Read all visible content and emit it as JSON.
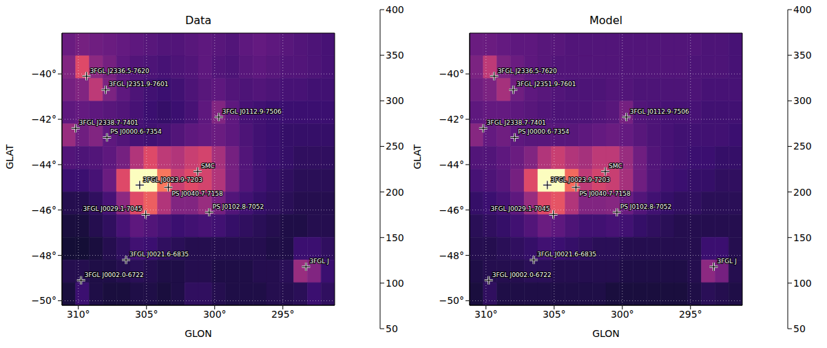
{
  "chart_data": [
    {
      "type": "heatmap",
      "title": "Data",
      "x_label": "GLON",
      "y_label": "GLAT",
      "xlim": [
        311.2,
        291.2
      ],
      "ylim": [
        -50.2,
        -38.2
      ],
      "xticks": [
        {
          "value": 310,
          "label": "310°"
        },
        {
          "value": 305,
          "label": "305°"
        },
        {
          "value": 300,
          "label": "300°"
        },
        {
          "value": 295,
          "label": "295°"
        }
      ],
      "yticks": [
        {
          "value": -40,
          "label": "−40°"
        },
        {
          "value": -42,
          "label": "−42°"
        },
        {
          "value": -44,
          "label": "−44°"
        },
        {
          "value": -46,
          "label": "−46°"
        },
        {
          "value": -48,
          "label": "−48°"
        },
        {
          "value": -50,
          "label": "−50°"
        }
      ],
      "grid": true,
      "color": "magma",
      "marker": "plus",
      "x": [
        310.7,
        309.7,
        308.7,
        307.7,
        306.7,
        305.7,
        304.7,
        303.7,
        302.7,
        301.7,
        300.7,
        299.7,
        298.7,
        297.7,
        296.7,
        295.7,
        294.7,
        293.7,
        292.7,
        291.7
      ],
      "y": [
        -38.7,
        -39.7,
        -40.7,
        -41.7,
        -42.7,
        -43.7,
        -44.7,
        -45.7,
        -46.7,
        -47.7,
        -48.7,
        -49.7
      ],
      "z": [
        [
          160,
          170,
          165,
          160,
          155,
          150,
          145,
          140,
          140,
          145,
          150,
          145,
          140,
          150,
          155,
          150,
          145,
          140,
          135,
          130
        ],
        [
          180,
          260,
          190,
          170,
          150,
          140,
          135,
          130,
          135,
          140,
          150,
          140,
          135,
          145,
          150,
          145,
          140,
          140,
          135,
          130
        ],
        [
          170,
          180,
          230,
          175,
          150,
          135,
          125,
          120,
          125,
          135,
          145,
          150,
          140,
          135,
          140,
          135,
          130,
          130,
          125,
          125
        ],
        [
          150,
          155,
          150,
          145,
          140,
          130,
          120,
          115,
          120,
          130,
          150,
          180,
          150,
          130,
          125,
          120,
          120,
          120,
          120,
          120
        ],
        [
          200,
          165,
          180,
          150,
          140,
          130,
          125,
          130,
          140,
          150,
          155,
          160,
          150,
          135,
          125,
          120,
          115,
          115,
          115,
          115
        ],
        [
          140,
          135,
          140,
          150,
          170,
          220,
          260,
          230,
          220,
          240,
          250,
          210,
          170,
          140,
          125,
          120,
          115,
          110,
          110,
          110
        ],
        [
          120,
          120,
          130,
          160,
          260,
          400,
          400,
          300,
          240,
          260,
          250,
          220,
          170,
          140,
          125,
          115,
          110,
          105,
          105,
          105
        ],
        [
          100,
          100,
          110,
          130,
          190,
          260,
          280,
          220,
          180,
          180,
          200,
          170,
          140,
          125,
          115,
          110,
          105,
          100,
          100,
          100
        ],
        [
          90,
          90,
          100,
          110,
          130,
          150,
          140,
          130,
          120,
          125,
          130,
          125,
          115,
          110,
          105,
          100,
          95,
          95,
          100,
          100
        ],
        [
          85,
          85,
          90,
          100,
          110,
          125,
          120,
          110,
          105,
          100,
          100,
          100,
          100,
          100,
          100,
          95,
          95,
          120,
          120,
          110
        ],
        [
          100,
          100,
          95,
          95,
          100,
          105,
          100,
          95,
          95,
          100,
          100,
          95,
          95,
          95,
          100,
          100,
          105,
          200,
          180,
          120
        ],
        [
          90,
          120,
          95,
          90,
          90,
          95,
          95,
          90,
          95,
          110,
          110,
          100,
          95,
          95,
          95,
          100,
          100,
          105,
          120,
          110
        ]
      ],
      "colorbar_range": [
        50,
        400
      ],
      "colorbar_ticks": [
        50,
        100,
        150,
        200,
        250,
        300,
        350,
        400
      ],
      "sources": [
        {
          "label": "3FGL J2336.5-7620",
          "x": 309.4,
          "y": -40.1
        },
        {
          "label": "3FGL J2351.9-7601",
          "x": 308.0,
          "y": -40.7
        },
        {
          "label": "3FGL J2338.7-7401",
          "x": 310.2,
          "y": -42.4
        },
        {
          "label": "PS J0000.6-7354",
          "x": 307.9,
          "y": -42.8
        },
        {
          "label": "3FGL J0112.9-7506",
          "x": 299.7,
          "y": -41.9
        },
        {
          "label": "SMC",
          "x": 301.25,
          "y": -44.3
        },
        {
          "label": "3FGL J0023.9-7203",
          "x": 305.5,
          "y": -44.9
        },
        {
          "label": "PS J0040.7-7158",
          "x": 303.4,
          "y": -45.0
        },
        {
          "label": "3FGL J0029.1-7045",
          "x": 305.06,
          "y": -46.2
        },
        {
          "label": "PS J0102.8-7052",
          "x": 300.4,
          "y": -46.1
        },
        {
          "label": "3FGL J0021.6-6835",
          "x": 306.5,
          "y": -48.2
        },
        {
          "label": "3FGL J0002.0-6722",
          "x": 309.8,
          "y": -49.1
        },
        {
          "label": "3FGL J",
          "x": 293.3,
          "y": -48.5
        }
      ]
    },
    {
      "type": "heatmap",
      "title": "Model",
      "x_label": "GLON",
      "y_label": "GLAT",
      "xlim": [
        311.2,
        291.2
      ],
      "ylim": [
        -50.2,
        -38.2
      ],
      "xticks": [
        {
          "value": 310,
          "label": "310°"
        },
        {
          "value": 305,
          "label": "305°"
        },
        {
          "value": 300,
          "label": "300°"
        },
        {
          "value": 295,
          "label": "295°"
        }
      ],
      "yticks": [
        {
          "value": -40,
          "label": "−40°"
        },
        {
          "value": -42,
          "label": "−42°"
        },
        {
          "value": -44,
          "label": "−44°"
        },
        {
          "value": -46,
          "label": "−46°"
        },
        {
          "value": -48,
          "label": "−48°"
        },
        {
          "value": -50,
          "label": "−50°"
        }
      ],
      "grid": true,
      "color": "magma",
      "marker": "plus",
      "x": [
        310.7,
        309.7,
        308.7,
        307.7,
        306.7,
        305.7,
        304.7,
        303.7,
        302.7,
        301.7,
        300.7,
        299.7,
        298.7,
        297.7,
        296.7,
        295.7,
        294.7,
        293.7,
        292.7,
        291.7
      ],
      "y": [
        -38.7,
        -39.7,
        -40.7,
        -41.7,
        -42.7,
        -43.7,
        -44.7,
        -45.7,
        -46.7,
        -47.7,
        -48.7,
        -49.7
      ],
      "z": [
        [
          160,
          160,
          155,
          150,
          150,
          145,
          145,
          140,
          140,
          140,
          140,
          140,
          140,
          140,
          140,
          140,
          140,
          135,
          135,
          130
        ],
        [
          175,
          230,
          175,
          160,
          150,
          145,
          140,
          140,
          140,
          140,
          140,
          140,
          140,
          140,
          140,
          140,
          135,
          135,
          135,
          130
        ],
        [
          165,
          175,
          210,
          165,
          150,
          145,
          140,
          135,
          135,
          135,
          140,
          140,
          135,
          135,
          135,
          135,
          135,
          130,
          130,
          130
        ],
        [
          150,
          155,
          155,
          150,
          145,
          140,
          135,
          135,
          135,
          140,
          145,
          170,
          140,
          135,
          130,
          130,
          130,
          125,
          125,
          125
        ],
        [
          185,
          155,
          165,
          150,
          145,
          145,
          145,
          145,
          150,
          155,
          160,
          155,
          145,
          135,
          130,
          125,
          125,
          125,
          125,
          120
        ],
        [
          140,
          140,
          150,
          160,
          180,
          220,
          240,
          220,
          210,
          230,
          230,
          200,
          165,
          140,
          130,
          125,
          120,
          120,
          115,
          115
        ],
        [
          130,
          135,
          145,
          170,
          260,
          400,
          400,
          290,
          230,
          250,
          240,
          210,
          165,
          140,
          125,
          120,
          115,
          115,
          110,
          110
        ],
        [
          115,
          120,
          130,
          150,
          200,
          260,
          270,
          220,
          180,
          180,
          185,
          160,
          140,
          125,
          115,
          110,
          110,
          105,
          105,
          105
        ],
        [
          105,
          110,
          115,
          125,
          140,
          160,
          150,
          135,
          125,
          125,
          130,
          125,
          115,
          110,
          105,
          100,
          100,
          100,
          100,
          100
        ],
        [
          100,
          100,
          105,
          110,
          115,
          125,
          120,
          115,
          110,
          105,
          105,
          100,
          100,
          100,
          100,
          100,
          100,
          120,
          120,
          100
        ],
        [
          95,
          100,
          100,
          100,
          105,
          105,
          100,
          100,
          100,
          100,
          100,
          95,
          95,
          95,
          95,
          95,
          100,
          190,
          170,
          100
        ],
        [
          90,
          110,
          95,
          95,
          95,
          95,
          95,
          95,
          95,
          95,
          90,
          90,
          90,
          90,
          90,
          90,
          95,
          105,
          100,
          95
        ]
      ],
      "colorbar_range": [
        50,
        400
      ],
      "colorbar_ticks": [
        50,
        100,
        150,
        200,
        250,
        300,
        350,
        400
      ],
      "sources": [
        {
          "label": "3FGL J2336.5-7620",
          "x": 309.4,
          "y": -40.1
        },
        {
          "label": "3FGL J2351.9-7601",
          "x": 308.0,
          "y": -40.7
        },
        {
          "label": "3FGL J2338.7-7401",
          "x": 310.2,
          "y": -42.4
        },
        {
          "label": "PS J0000.6-7354",
          "x": 307.9,
          "y": -42.8
        },
        {
          "label": "3FGL J0112.9-7506",
          "x": 299.7,
          "y": -41.9
        },
        {
          "label": "SMC",
          "x": 301.25,
          "y": -44.3
        },
        {
          "label": "3FGL J0023.9-7203",
          "x": 305.5,
          "y": -44.9
        },
        {
          "label": "PS J0040.7-7158",
          "x": 303.4,
          "y": -45.0
        },
        {
          "label": "3FGL J0029.1-7045",
          "x": 305.06,
          "y": -46.2
        },
        {
          "label": "PS J0102.8-7052",
          "x": 300.4,
          "y": -46.1
        },
        {
          "label": "3FGL J0021.6-6835",
          "x": 306.5,
          "y": -48.2
        },
        {
          "label": "3FGL J0002.0-6722",
          "x": 309.8,
          "y": -49.1
        },
        {
          "label": "3FGL J",
          "x": 293.3,
          "y": -48.5
        }
      ]
    }
  ]
}
